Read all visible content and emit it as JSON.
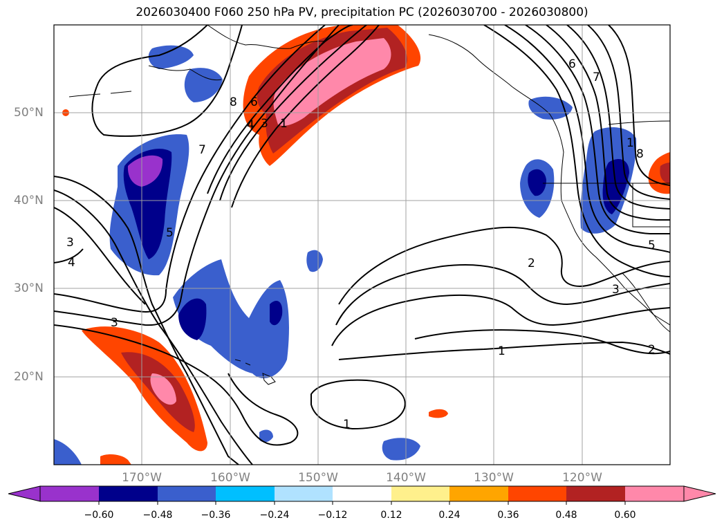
{
  "title": "2026030400 F060 250 hPa PV, precipitation PC (2026030700 - 2026030800)",
  "map": {
    "lon_labels": [
      "170°W",
      "160°W",
      "150°W",
      "140°W",
      "130°W",
      "120°W"
    ],
    "lat_labels": [
      "50°N",
      "40°N",
      "30°N",
      "20°N"
    ],
    "pv_contour_labels": [
      "8",
      "6",
      "4",
      "3",
      "1",
      "7",
      "5",
      "3",
      "4",
      "3",
      "2",
      "6",
      "7",
      "8",
      "5",
      "3",
      "2",
      "1",
      "1",
      "1"
    ]
  },
  "colorbar": {
    "tick_labels": [
      "−0.60",
      "−0.48",
      "−0.36",
      "−0.24",
      "−0.12",
      "0.12",
      "0.24",
      "0.36",
      "0.48",
      "0.60"
    ],
    "colors": [
      "#9932cc",
      "#00008b",
      "#3a5fcd",
      "#00bfff",
      "#b0e2ff",
      "#ffffff",
      "#fff08c",
      "#ffa500",
      "#ff4500",
      "#b22222",
      "#ff88aa"
    ]
  }
}
